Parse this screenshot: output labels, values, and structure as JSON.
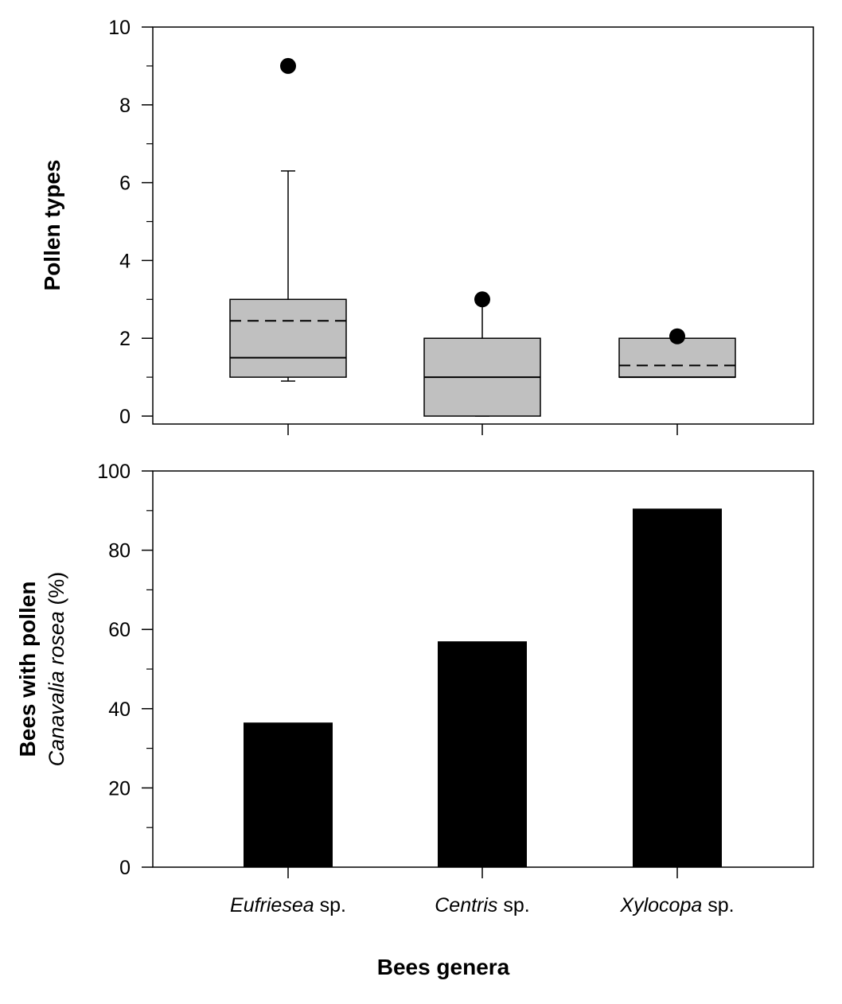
{
  "chart_data": [
    {
      "type": "box",
      "ylabel": "Pollen types",
      "ylim": [
        0,
        10
      ],
      "yticks": [
        0,
        2,
        4,
        6,
        8,
        10
      ],
      "categories": [
        "Eufriesea sp.",
        "Centris sp.",
        "Xylocopa sp."
      ],
      "box_fill": "#c0c0c0",
      "boxes": [
        {
          "category": "Eufriesea sp.",
          "q1": 1,
          "median": 1.5,
          "q3": 3,
          "mean": 2.45,
          "whisker_low": 0.9,
          "whisker_high": 6.3,
          "outliers": [
            9
          ]
        },
        {
          "category": "Centris sp.",
          "q1": 0,
          "median": 1,
          "q3": 2,
          "mean": null,
          "whisker_low": 0,
          "whisker_high": 3,
          "outliers": [
            3
          ]
        },
        {
          "category": "Xylocopa sp.",
          "q1": 1,
          "median": 1,
          "q3": 2,
          "mean": 1.3,
          "whisker_low": 1,
          "whisker_high": 2,
          "outliers": [
            2.05
          ]
        }
      ],
      "legend": "none",
      "grid": false
    },
    {
      "type": "bar",
      "ylabel_line1": "Bees with pollen",
      "ylabel_line2_italic": "Canavalia rosea",
      "ylabel_line2_suffix": " (%)",
      "ylim": [
        0,
        100
      ],
      "yticks": [
        0,
        20,
        40,
        60,
        80,
        100
      ],
      "categories": [
        "Eufriesea sp.",
        "Centris sp.",
        "Xylocopa sp."
      ],
      "category_labels": [
        {
          "italic": "Eufriesea",
          "rest": " sp."
        },
        {
          "italic": "Centris",
          "rest": " sp."
        },
        {
          "italic": "Xylocopa",
          "rest": " sp."
        }
      ],
      "values": [
        36.5,
        57,
        90.5
      ],
      "bar_color": "#000000",
      "xlabel": "Bees genera",
      "legend": "none",
      "grid": false
    }
  ]
}
